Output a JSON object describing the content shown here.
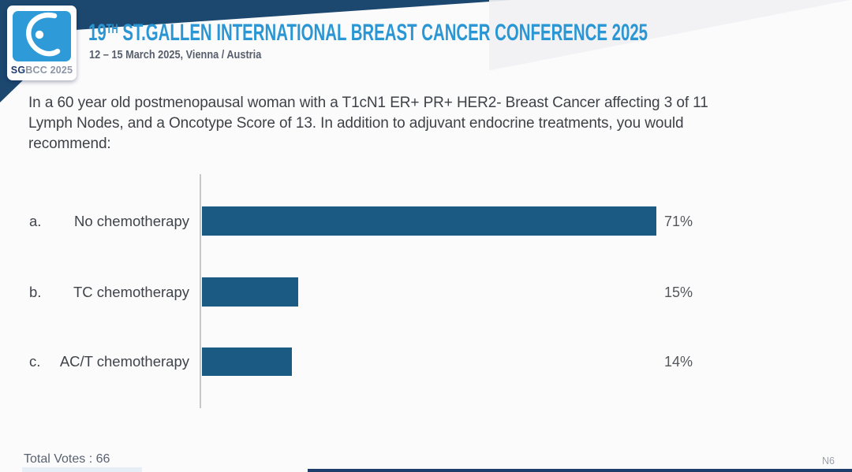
{
  "header": {
    "logo": {
      "sg": "SG",
      "rest": "BCC 2025"
    },
    "title_num": "19",
    "title_sup": "TH",
    "title_rest": " ST.GALLEN INTERNATIONAL BREAST CANCER CONFERENCE 2025",
    "subtitle": "12 – 15 March 2025, Vienna / Austria"
  },
  "question": {
    "lines": [
      "In a 60 year old postmenopausal woman with a T1cN1 ER+ PR+ HER2- Breast Cancer affecting 3 of 11",
      "Lymph Nodes, and a Oncotype Score of 13. In addition to adjuvant endocrine treatments, you would",
      "recommend:"
    ]
  },
  "chart_data": {
    "type": "bar",
    "orientation": "horizontal",
    "option_letters": [
      "a.",
      "b.",
      "c."
    ],
    "categories": [
      "No chemotherapy",
      "TC chemotherapy",
      "AC/T chemotherapy"
    ],
    "values": [
      71,
      15,
      14
    ],
    "value_labels": [
      "71%",
      "15%",
      "14%"
    ],
    "unit": "%",
    "xlim": [
      0,
      100
    ],
    "grid": false,
    "legend": false,
    "bar_color": "#1b5b83",
    "axis_color": "#c8c8cb"
  },
  "footer": {
    "total_votes": "Total Votes : 66",
    "slide_code": "N6"
  },
  "colors": {
    "brand_blue": "#2e9bd8",
    "title_blue": "#2a96d3",
    "ribbon_navy": "#1c4870",
    "bar_navy": "#1b5b83"
  }
}
